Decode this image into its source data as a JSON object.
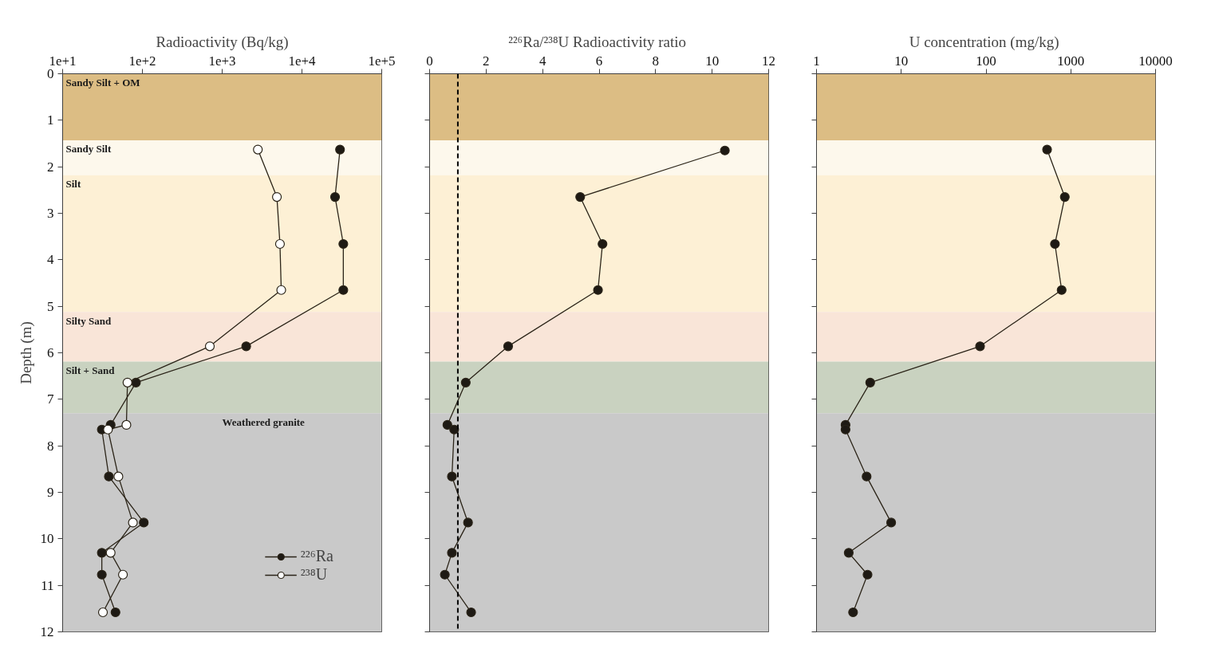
{
  "chart_data": [
    {
      "type": "line",
      "xlabel": "Radioactivity (Bq/kg)",
      "ylabel": "Depth (m)",
      "log": "x",
      "xlim": [
        10,
        100000
      ],
      "xticks": [
        {
          "value": 10,
          "label": "1e+1"
        },
        {
          "value": 100,
          "label": "1e+2"
        },
        {
          "value": 1000,
          "label": "1e+3"
        },
        {
          "value": 10000,
          "label": "1e+4"
        },
        {
          "value": 100000,
          "label": "1e+5"
        }
      ],
      "ylim": [
        12,
        0
      ],
      "yticks": [
        0,
        1,
        2,
        3,
        4,
        5,
        6,
        7,
        8,
        9,
        10,
        11,
        12
      ],
      "marker": "circle",
      "legend": "bottom right",
      "grid": false,
      "series": [
        {
          "name": "²²⁶Ra",
          "color": "#1e1a14",
          "x": [
            30000,
            26000,
            33000,
            33000,
            2000,
            83,
            40,
            31,
            38,
            104,
            31,
            31,
            46
          ],
          "values": [
            1.63,
            2.65,
            3.66,
            4.65,
            5.86,
            6.64,
            7.55,
            7.65,
            8.66,
            9.65,
            10.3,
            10.77,
            11.58
          ]
        },
        {
          "name": "²³⁸U",
          "color": "#ffffff",
          "x": [
            2800,
            4850,
            5300,
            5500,
            700,
            65,
            63,
            37,
            50,
            76,
            40,
            57,
            32
          ],
          "values": [
            1.63,
            2.65,
            3.66,
            4.65,
            5.86,
            6.64,
            7.55,
            7.65,
            8.66,
            9.65,
            10.3,
            10.77,
            11.58
          ]
        }
      ],
      "bands": [
        {
          "axis": "y",
          "from": 0,
          "to": 1.43,
          "label": "Sandy  Silt + OM",
          "color": "#dcbd84"
        },
        {
          "axis": "y",
          "from": 1.43,
          "to": 2.18,
          "label": "Sandy  Silt",
          "color": "#fdf8ec"
        },
        {
          "axis": "y",
          "from": 2.18,
          "to": 5.12,
          "label": "Silt",
          "color": "#fdf0d5"
        },
        {
          "axis": "y",
          "from": 5.12,
          "to": 6.19,
          "label": "Silty Sand",
          "color": "#f9e5d8"
        },
        {
          "axis": "y",
          "from": 6.19,
          "to": 7.3,
          "label": "Silt + Sand",
          "color": "#c9d2c0"
        },
        {
          "axis": "y",
          "from": 7.3,
          "to": 12,
          "label": "Weathered  granite",
          "color": "#c9c9c9"
        }
      ]
    },
    {
      "type": "line",
      "xlabel": "²²⁶Ra/²³⁸U  Radioactivity ratio",
      "xlim": [
        0,
        12
      ],
      "xticks": [
        0,
        2,
        4,
        6,
        8,
        10,
        12
      ],
      "ylim": [
        12,
        0
      ],
      "yticks": [
        0,
        1,
        2,
        3,
        4,
        5,
        6,
        7,
        8,
        9,
        10,
        11,
        12
      ],
      "tick_labels": "x",
      "marker": "circle",
      "grid": false,
      "series": [
        {
          "color": "#1e1a14",
          "x": [
            10.45,
            5.33,
            6.12,
            5.96,
            2.78,
            1.28,
            0.63,
            0.87,
            0.79,
            1.36,
            0.79,
            0.54,
            1.47
          ],
          "values": [
            1.65,
            2.65,
            3.66,
            4.65,
            5.86,
            6.64,
            7.55,
            7.65,
            8.66,
            9.65,
            10.3,
            10.77,
            11.58
          ]
        }
      ],
      "ref_lines": [
        {
          "axis": "x",
          "value": 1,
          "color": "#000000",
          "line_style": "dashed"
        }
      ],
      "bands": [
        {
          "axis": "y",
          "from": 0,
          "to": 1.43,
          "color": "#dcbd84"
        },
        {
          "axis": "y",
          "from": 1.43,
          "to": 2.18,
          "color": "#fdf8ec"
        },
        {
          "axis": "y",
          "from": 2.18,
          "to": 5.12,
          "color": "#fdf0d5"
        },
        {
          "axis": "y",
          "from": 5.12,
          "to": 6.19,
          "color": "#f9e5d8"
        },
        {
          "axis": "y",
          "from": 6.19,
          "to": 7.3,
          "color": "#c9d2c0"
        },
        {
          "axis": "y",
          "from": 7.3,
          "to": 12,
          "color": "#c9c9c9"
        }
      ]
    },
    {
      "type": "line",
      "xlabel": "U concentration  (mg/kg)",
      "log": "x",
      "xlim": [
        1,
        10000
      ],
      "xticks": [
        1,
        10,
        100,
        1000,
        10000
      ],
      "ylim": [
        12,
        0
      ],
      "yticks": [
        0,
        1,
        2,
        3,
        4,
        5,
        6,
        7,
        8,
        9,
        10,
        11,
        12
      ],
      "tick_labels": "x",
      "marker": "circle",
      "grid": false,
      "series": [
        {
          "color": "#1e1a14",
          "x": [
            525,
            850,
            650,
            780,
            85,
            4.3,
            2.2,
            2.2,
            3.9,
            7.6,
            2.4,
            4.0,
            2.7
          ],
          "values": [
            1.63,
            2.65,
            3.66,
            4.65,
            5.86,
            6.64,
            7.55,
            7.65,
            8.66,
            9.65,
            10.3,
            10.77,
            11.58
          ]
        }
      ],
      "bands": [
        {
          "axis": "y",
          "from": 0,
          "to": 1.43,
          "color": "#dcbd84"
        },
        {
          "axis": "y",
          "from": 1.43,
          "to": 2.18,
          "color": "#fdf8ec"
        },
        {
          "axis": "y",
          "from": 2.18,
          "to": 5.12,
          "color": "#fdf0d5"
        },
        {
          "axis": "y",
          "from": 5.12,
          "to": 6.19,
          "color": "#f9e5d8"
        },
        {
          "axis": "y",
          "from": 6.19,
          "to": 7.3,
          "color": "#c9d2c0"
        },
        {
          "axis": "y",
          "from": 7.3,
          "to": 12,
          "color": "#c9c9c9"
        }
      ]
    }
  ]
}
